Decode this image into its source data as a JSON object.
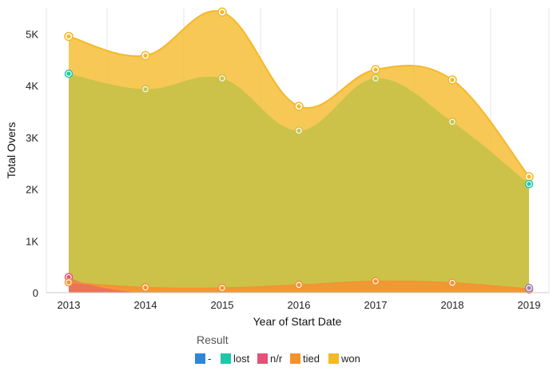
{
  "chart_data": {
    "type": "area",
    "title": "",
    "xlabel": "Year of Start Date",
    "ylabel": "Total Overs",
    "x": [
      "2013",
      "2014",
      "2015",
      "2016",
      "2017",
      "2018",
      "2019"
    ],
    "ylim": [
      0,
      5500
    ],
    "yticks": [
      0,
      1000,
      2000,
      3000,
      4000,
      5000
    ],
    "ytick_labels": [
      "0",
      "1K",
      "2K",
      "3K",
      "4K",
      "5K"
    ],
    "grid": "vertical",
    "legend": {
      "title": "Result",
      "position": "bottom",
      "entries": [
        "-",
        "lost",
        "n/r",
        "tied",
        "won"
      ]
    },
    "series": [
      {
        "name": "-",
        "color": "#2f86d8",
        "values": [
          null,
          null,
          null,
          null,
          null,
          null,
          90
        ]
      },
      {
        "name": "lost",
        "color": "#1ec7a8",
        "values": [
          4230,
          null,
          null,
          null,
          null,
          null,
          2100
        ]
      },
      {
        "name": "n/r",
        "color": "#e8507a",
        "values": [
          300,
          null,
          null,
          null,
          null,
          null,
          60
        ]
      },
      {
        "name": "tied",
        "color": "#f59230",
        "values": [
          200,
          100,
          90,
          150,
          220,
          190,
          70
        ]
      },
      {
        "name": "won",
        "color": "#f5b827",
        "values": [
          4950,
          4580,
          5420,
          3600,
          4310,
          4110,
          2240
        ]
      }
    ],
    "overlay": {
      "name": "olive-band",
      "color": "#c9c24a",
      "values": [
        4230,
        3930,
        4140,
        3130,
        4140,
        3300,
        2100
      ]
    }
  }
}
